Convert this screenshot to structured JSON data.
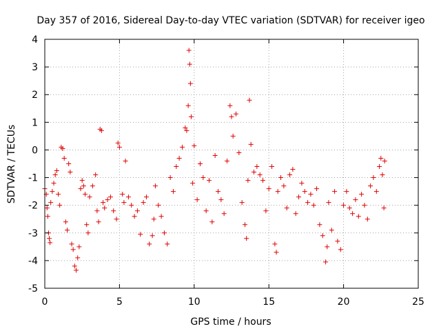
{
  "chart_data": {
    "type": "scatter",
    "title": "Day 357 of 2016, Sidereal Day-to-day VTEC variation (SDTVAR) for receiver igeo",
    "xlabel": "GPS time / hours",
    "ylabel": "SDTVAR / TECUs",
    "xlim": [
      0,
      25
    ],
    "ylim": [
      -5,
      4
    ],
    "x_ticks": [
      "0",
      "5",
      "10",
      "15",
      "20",
      "25"
    ],
    "y_ticks": [
      "-5",
      "-4",
      "-3",
      "-2",
      "-1",
      "0",
      "1",
      "2",
      "3",
      "4"
    ],
    "grid": true,
    "marker": "+",
    "marker_color": "#e00000",
    "series": [
      {
        "name": "SDTVAR",
        "points": [
          [
            0.0,
            -1.4
          ],
          [
            0.1,
            -1.6
          ],
          [
            0.15,
            -2.1
          ],
          [
            0.2,
            -2.4
          ],
          [
            0.25,
            -3.0
          ],
          [
            0.3,
            -3.2
          ],
          [
            0.35,
            -3.35
          ],
          [
            0.4,
            -1.9
          ],
          [
            0.5,
            -1.5
          ],
          [
            0.6,
            -1.2
          ],
          [
            0.7,
            -0.9
          ],
          [
            0.8,
            -0.75
          ],
          [
            0.9,
            -1.6
          ],
          [
            1.0,
            -2.0
          ],
          [
            1.1,
            0.1
          ],
          [
            1.2,
            0.05
          ],
          [
            1.3,
            -0.3
          ],
          [
            1.4,
            -2.6
          ],
          [
            1.5,
            -2.9
          ],
          [
            1.6,
            -0.5
          ],
          [
            1.7,
            -0.8
          ],
          [
            1.8,
            -3.4
          ],
          [
            1.9,
            -3.6
          ],
          [
            2.0,
            -4.2
          ],
          [
            2.1,
            -4.35
          ],
          [
            2.2,
            -3.9
          ],
          [
            2.3,
            -3.5
          ],
          [
            2.4,
            -1.4
          ],
          [
            2.5,
            -1.1
          ],
          [
            2.6,
            -1.3
          ],
          [
            2.7,
            -1.6
          ],
          [
            2.8,
            -2.7
          ],
          [
            2.9,
            -3.0
          ],
          [
            3.0,
            -1.7
          ],
          [
            3.2,
            -1.3
          ],
          [
            3.4,
            -0.9
          ],
          [
            3.5,
            -2.2
          ],
          [
            3.6,
            -2.6
          ],
          [
            3.7,
            0.75
          ],
          [
            3.8,
            0.7
          ],
          [
            3.9,
            -1.9
          ],
          [
            4.0,
            -2.1
          ],
          [
            4.2,
            -1.8
          ],
          [
            4.4,
            -1.7
          ],
          [
            4.6,
            -2.2
          ],
          [
            4.8,
            -2.5
          ],
          [
            4.9,
            0.25
          ],
          [
            5.0,
            0.1
          ],
          [
            5.2,
            -1.6
          ],
          [
            5.3,
            -1.9
          ],
          [
            5.4,
            -0.4
          ],
          [
            5.6,
            -1.7
          ],
          [
            5.8,
            -2.0
          ],
          [
            6.0,
            -2.4
          ],
          [
            6.2,
            -2.2
          ],
          [
            6.4,
            -3.05
          ],
          [
            6.6,
            -1.9
          ],
          [
            6.8,
            -1.7
          ],
          [
            7.0,
            -3.4
          ],
          [
            7.2,
            -3.1
          ],
          [
            7.3,
            -2.5
          ],
          [
            7.4,
            -1.3
          ],
          [
            7.6,
            -2.0
          ],
          [
            7.8,
            -2.4
          ],
          [
            8.0,
            -3.0
          ],
          [
            8.2,
            -3.4
          ],
          [
            8.4,
            -1.0
          ],
          [
            8.6,
            -1.5
          ],
          [
            8.8,
            -0.6
          ],
          [
            9.0,
            -0.3
          ],
          [
            9.2,
            0.1
          ],
          [
            9.4,
            0.8
          ],
          [
            9.5,
            0.7
          ],
          [
            9.6,
            1.6
          ],
          [
            9.65,
            3.6
          ],
          [
            9.7,
            3.1
          ],
          [
            9.75,
            2.4
          ],
          [
            9.8,
            1.2
          ],
          [
            9.9,
            -1.2
          ],
          [
            10.0,
            0.15
          ],
          [
            10.2,
            -1.8
          ],
          [
            10.4,
            -0.5
          ],
          [
            10.6,
            -1.0
          ],
          [
            10.8,
            -2.2
          ],
          [
            11.0,
            -1.1
          ],
          [
            11.2,
            -2.6
          ],
          [
            11.4,
            -0.2
          ],
          [
            11.6,
            -1.5
          ],
          [
            11.8,
            -1.8
          ],
          [
            12.0,
            -2.3
          ],
          [
            12.2,
            -0.4
          ],
          [
            12.4,
            1.6
          ],
          [
            12.5,
            1.2
          ],
          [
            12.6,
            0.5
          ],
          [
            12.8,
            1.3
          ],
          [
            13.0,
            -0.1
          ],
          [
            13.2,
            -1.9
          ],
          [
            13.4,
            -2.7
          ],
          [
            13.5,
            -3.2
          ],
          [
            13.6,
            -1.1
          ],
          [
            13.7,
            1.8
          ],
          [
            13.8,
            0.2
          ],
          [
            14.0,
            -0.8
          ],
          [
            14.2,
            -0.6
          ],
          [
            14.4,
            -0.9
          ],
          [
            14.6,
            -1.1
          ],
          [
            14.8,
            -2.2
          ],
          [
            15.0,
            -1.4
          ],
          [
            15.2,
            -0.6
          ],
          [
            15.4,
            -3.4
          ],
          [
            15.5,
            -3.7
          ],
          [
            15.6,
            -1.5
          ],
          [
            15.8,
            -1.0
          ],
          [
            16.0,
            -1.3
          ],
          [
            16.2,
            -2.1
          ],
          [
            16.4,
            -0.9
          ],
          [
            16.6,
            -0.7
          ],
          [
            16.8,
            -2.3
          ],
          [
            17.0,
            -1.7
          ],
          [
            17.2,
            -1.2
          ],
          [
            17.4,
            -1.5
          ],
          [
            17.6,
            -1.9
          ],
          [
            17.8,
            -1.6
          ],
          [
            18.0,
            -2.0
          ],
          [
            18.2,
            -1.4
          ],
          [
            18.4,
            -2.7
          ],
          [
            18.6,
            -3.1
          ],
          [
            18.8,
            -4.05
          ],
          [
            18.9,
            -3.5
          ],
          [
            19.0,
            -1.9
          ],
          [
            19.2,
            -2.9
          ],
          [
            19.4,
            -1.5
          ],
          [
            19.6,
            -3.3
          ],
          [
            19.8,
            -3.6
          ],
          [
            20.0,
            -2.0
          ],
          [
            20.2,
            -1.5
          ],
          [
            20.4,
            -2.1
          ],
          [
            20.6,
            -2.3
          ],
          [
            20.8,
            -1.8
          ],
          [
            21.0,
            -2.4
          ],
          [
            21.2,
            -1.6
          ],
          [
            21.4,
            -2.0
          ],
          [
            21.6,
            -2.5
          ],
          [
            21.8,
            -1.3
          ],
          [
            22.0,
            -1.0
          ],
          [
            22.2,
            -1.5
          ],
          [
            22.4,
            -0.6
          ],
          [
            22.5,
            -0.3
          ],
          [
            22.6,
            -0.9
          ],
          [
            22.7,
            -2.1
          ],
          [
            22.75,
            -0.4
          ]
        ]
      }
    ]
  }
}
